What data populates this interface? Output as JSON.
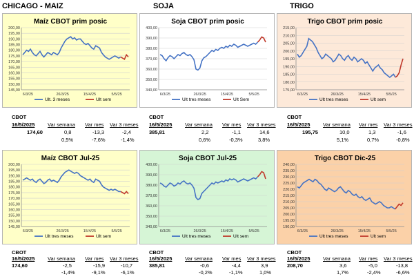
{
  "sections": [
    "CHICAGO - MAIZ",
    "SOJA",
    "TRIGO"
  ],
  "colors": {
    "hist": "#4472c4",
    "week": "#c0392b",
    "grid": "#d0d0d0",
    "axis": "#8c8c8c"
  },
  "chart_data": [
    {
      "id": "maiz1",
      "type": "line",
      "title": "Maíz CBOT prim posic",
      "bg": "#ffffc8",
      "ylim": [
        145,
        200
      ],
      "yticks": [
        "200,00",
        "195,00",
        "190,00",
        "185,00",
        "180,00",
        "175,00",
        "170,00",
        "165,00",
        "160,00",
        "155,00",
        "150,00",
        "145,00"
      ],
      "xticks": [
        "6/3/25",
        "26/3/25",
        "15/4/25",
        "5/5/25"
      ],
      "series": [
        {
          "name": "Ult. 3 meses",
          "color": "#4472c4",
          "values": [
            176,
            178,
            180,
            179,
            181,
            178,
            176,
            175,
            177,
            179,
            176,
            174,
            176,
            178,
            177,
            176,
            178,
            177,
            176,
            178,
            182,
            185,
            188,
            190,
            191,
            192,
            190,
            191,
            189,
            190,
            190,
            188,
            186,
            185,
            186,
            184,
            182,
            181,
            184,
            183,
            182,
            178,
            176,
            174,
            173,
            172,
            173,
            174,
            175,
            174,
            173,
            174
          ]
        },
        {
          "name": "Ult sem",
          "color": "#c0392b",
          "values": [
            174,
            173,
            172,
            176,
            174
          ]
        }
      ]
    },
    {
      "id": "soja1",
      "type": "line",
      "title": "Soja CBOT prim posic",
      "bg": "#ffffff",
      "ylim": [
        340,
        400
      ],
      "yticks": [
        "400,00",
        "390,00",
        "380,00",
        "370,00",
        "360,00",
        "350,00",
        "340,00"
      ],
      "xticks": [
        "6/3/25",
        "26/3/25",
        "15/4/25",
        "5/5/25"
      ],
      "series": [
        {
          "name": "Ult tres meses",
          "color": "#4472c4",
          "values": [
            374,
            373,
            370,
            368,
            371,
            373,
            372,
            370,
            372,
            374,
            373,
            375,
            376,
            374,
            373,
            374,
            372,
            369,
            360,
            359,
            361,
            368,
            371,
            372,
            374,
            376,
            378,
            377,
            379,
            378,
            380,
            381,
            380,
            382,
            381,
            383,
            382,
            384,
            383,
            381,
            382,
            383,
            384,
            383,
            382,
            383,
            384,
            385,
            384,
            386
          ]
        },
        {
          "name": "Ult Sem",
          "color": "#c0392b",
          "values": [
            386,
            388,
            391,
            390,
            386
          ]
        }
      ]
    },
    {
      "id": "trigo1",
      "type": "line",
      "title": "Trigo CBOT prim posic",
      "bg": "#fde9d9",
      "ylim": [
        175,
        215
      ],
      "yticks": [
        "215,00",
        "210,00",
        "205,00",
        "200,00",
        "195,00",
        "190,00",
        "185,00",
        "180,00",
        "175,00"
      ],
      "xticks": [
        "6/3/25",
        "26/3/25",
        "15/4/25",
        "5/5/25"
      ],
      "series": [
        {
          "name": "Ult tres meses",
          "color": "#4472c4",
          "values": [
            198,
            196,
            197,
            199,
            201,
            203,
            208,
            207,
            206,
            204,
            202,
            199,
            197,
            195,
            196,
            198,
            197,
            196,
            195,
            193,
            194,
            196,
            198,
            197,
            195,
            194,
            196,
            197,
            195,
            194,
            196,
            195,
            193,
            194,
            195,
            194,
            192,
            193,
            191,
            189,
            187,
            189,
            190,
            191,
            189,
            188,
            186,
            185,
            184,
            183,
            184,
            185,
            183
          ]
        },
        {
          "name": "Ult sem",
          "color": "#c0392b",
          "values": [
            183,
            184,
            186,
            191,
            195
          ]
        }
      ]
    },
    {
      "id": "maiz2",
      "type": "line",
      "title": "Maíz CBOT Jul-25",
      "bg": "#ffffc8",
      "ylim": [
        145,
        200
      ],
      "yticks": [
        "200,00",
        "195,00",
        "190,00",
        "185,00",
        "180,00",
        "175,00",
        "170,00",
        "165,00",
        "160,00",
        "155,00",
        "150,00",
        "145,00"
      ],
      "xticks": [
        "6/3/25",
        "26/3/25",
        "15/4/25",
        "5/5/25"
      ],
      "series": [
        {
          "name": "Ult tres meses",
          "color": "#4472c4",
          "values": [
            186,
            187,
            188,
            187,
            186,
            187,
            185,
            184,
            186,
            187,
            185,
            183,
            184,
            186,
            187,
            185,
            186,
            185,
            184,
            186,
            189,
            191,
            193,
            194,
            195,
            194,
            193,
            192,
            193,
            192,
            190,
            189,
            188,
            187,
            186,
            187,
            185,
            184,
            187,
            186,
            185,
            182,
            180,
            179,
            178,
            177,
            178,
            177,
            178,
            177,
            176,
            176
          ]
        },
        {
          "name": "Ult sem",
          "color": "#c0392b",
          "values": [
            176,
            175,
            174,
            176,
            174
          ]
        }
      ]
    },
    {
      "id": "soja2",
      "type": "line",
      "title": "Soja CBOT Jul-25",
      "bg": "#d6f5d6",
      "ylim": [
        340,
        400
      ],
      "yticks": [
        "400,00",
        "390,00",
        "380,00",
        "370,00",
        "360,00",
        "350,00",
        "340,00"
      ],
      "xticks": [
        "6/3/25",
        "26/3/25",
        "15/4/25",
        "5/5/25"
      ],
      "series": [
        {
          "name": "Ult tres meses",
          "color": "#4472c4",
          "values": [
            382,
            381,
            379,
            378,
            380,
            382,
            381,
            379,
            380,
            382,
            381,
            383,
            384,
            382,
            381,
            382,
            380,
            377,
            368,
            366,
            367,
            372,
            374,
            376,
            378,
            380,
            382,
            381,
            383,
            382,
            383,
            384,
            383,
            385,
            384,
            386,
            385,
            386,
            385,
            383,
            384,
            385,
            386,
            385,
            384,
            385,
            386,
            387,
            386,
            388
          ]
        },
        {
          "name": "Ult sem",
          "color": "#c0392b",
          "values": [
            388,
            390,
            393,
            392,
            386
          ]
        }
      ]
    },
    {
      "id": "trigo2",
      "type": "line",
      "title": "Trigo CBOT Dic-25",
      "bg": "#fbd1a8",
      "ylim": [
        190,
        240
      ],
      "yticks": [
        "240,00",
        "235,00",
        "230,00",
        "225,00",
        "220,00",
        "215,00",
        "210,00",
        "205,00",
        "200,00",
        "195,00",
        "190,00"
      ],
      "xticks": [
        "6/3/25",
        "26/3/25",
        "15/4/25",
        "5/5/25"
      ],
      "series": [
        {
          "name": "Ult tres meses",
          "color": "#4472c4",
          "values": [
            222,
            221,
            223,
            225,
            226,
            227,
            228,
            227,
            226,
            228,
            227,
            225,
            224,
            222,
            220,
            219,
            221,
            220,
            219,
            218,
            219,
            221,
            222,
            220,
            218,
            217,
            219,
            218,
            216,
            215,
            216,
            214,
            213,
            214,
            212,
            211,
            212,
            213,
            210,
            209,
            208,
            209,
            210,
            209,
            207,
            206,
            205,
            205,
            206,
            205,
            204
          ]
        },
        {
          "name": "Ult sem",
          "color": "#c0392b",
          "values": [
            204,
            206,
            208,
            207,
            209
          ]
        }
      ]
    }
  ],
  "stats": [
    {
      "name": "CBOT",
      "date": "16/5/2025",
      "price": "174,60",
      "h1": "Var semana",
      "h2": "Var mes",
      "h3": "Var 3 meses",
      "v1": "0,8",
      "v2": "-13,3",
      "v3": "-2,4",
      "p1": "0,5%",
      "p2": "-7,6%",
      "p3": "-1,4%"
    },
    {
      "name": "CBOT",
      "date": "16/5/2025",
      "price": "385,81",
      "h1": "Var semana",
      "h2": "Var mes",
      "h3": "Var 3 meses",
      "v1": "2,2",
      "v2": "-1,1",
      "v3": "14,6",
      "p1": "0,6%",
      "p2": "-0,3%",
      "p3": "3,8%"
    },
    {
      "name": "CBOT",
      "date": "16/5/2025",
      "price": "195,75",
      "h1": "Var semana",
      "h2": "Var mes",
      "h3": "Var 3 meses",
      "v1": "10,0",
      "v2": "1,3",
      "v3": "-1,6",
      "p1": "5,1%",
      "p2": "0,7%",
      "p3": "-0,8%"
    },
    {
      "name": "CBOT",
      "date": "16/5/2025",
      "price": "174,60",
      "h1": "Var semana",
      "h2": "Var mes",
      "h3": "Var 3 meses",
      "v1": "-2,5",
      "v2": "-15,9",
      "v3": "-10,7",
      "p1": "-1,4%",
      "p2": "-9,1%",
      "p3": "-6,1%"
    },
    {
      "name": "CBOT",
      "date": "16/5/2025",
      "price": "385,81",
      "h1": "Var semana",
      "h2": "Var mes",
      "h3": "Var 3 meses",
      "v1": "-0,6",
      "v2": "-4,4",
      "v3": "3,9",
      "p1": "-0,2%",
      "p2": "-1,1%",
      "p3": "1,0%"
    },
    {
      "name": "CBOT",
      "date": "16/5/2025",
      "price": "208,70",
      "h1": "Var semana",
      "h2": "Var mes",
      "h3": "Var 3 meses",
      "v1": "3,6",
      "v2": "-5,0",
      "v3": "-13,8",
      "p1": "1,7%",
      "p2": "-2,4%",
      "p3": "-6,6%"
    }
  ]
}
